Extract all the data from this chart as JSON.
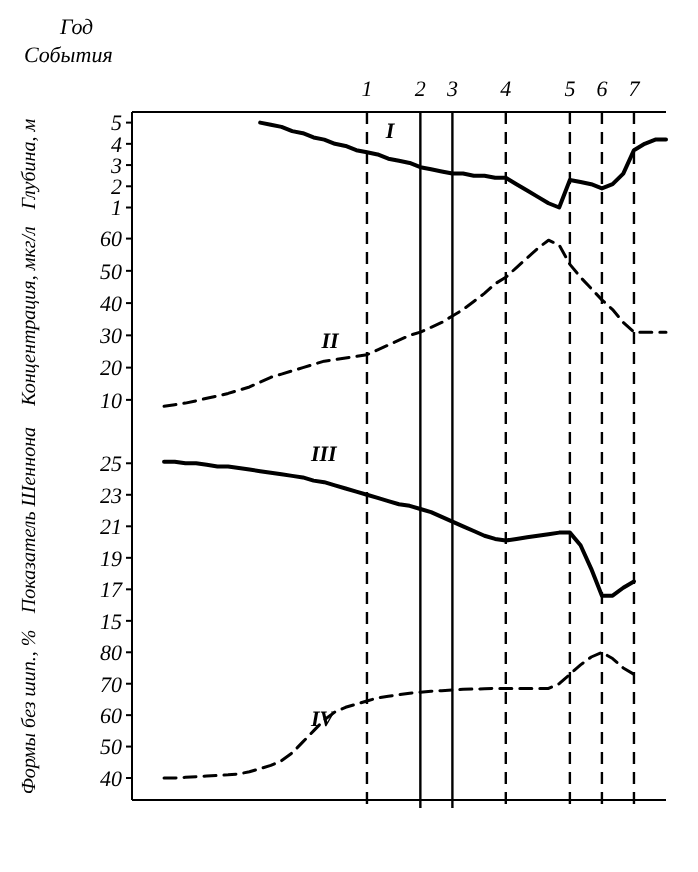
{
  "chart_data": [
    {
      "type": "line",
      "xlabel": "События",
      "ylabel": "Глубина, м",
      "annotations": [
        "Год"
      ],
      "ylim": [
        0.6,
        5.5
      ],
      "yticks": [
        1,
        2,
        3,
        4,
        5
      ],
      "categories": [
        null,
        null,
        null,
        null,
        null,
        null,
        null,
        null,
        null,
        null,
        null,
        null,
        null,
        null,
        null,
        null,
        null,
        null,
        null,
        null,
        null,
        null,
        "1",
        null,
        null,
        null,
        null,
        "2",
        null,
        null,
        "3",
        null,
        null,
        null,
        null,
        "4",
        null,
        null,
        null,
        null,
        null,
        "5",
        null,
        null,
        "6",
        null,
        null,
        "7",
        null,
        null,
        null
      ],
      "series": [
        {
          "name": "I",
          "color": "#000000",
          "line_style": "solid",
          "values": [
            null,
            null,
            null,
            null,
            null,
            null,
            null,
            null,
            null,
            null,
            null,
            null,
            5.0,
            4.9,
            4.8,
            4.6,
            4.5,
            4.3,
            4.2,
            4.0,
            3.9,
            3.7,
            3.6,
            3.5,
            3.3,
            3.2,
            3.1,
            2.9,
            2.8,
            2.7,
            2.6,
            2.6,
            2.5,
            2.5,
            2.4,
            2.4,
            2.1,
            1.8,
            1.5,
            1.2,
            1.0,
            2.3,
            2.2,
            2.1,
            1.9,
            2.1,
            2.6,
            3.7,
            4.0,
            4.2,
            4.2
          ]
        }
      ],
      "ref_lines": [
        {
          "axis": "x",
          "value": "1",
          "line_style": "dashed"
        },
        {
          "axis": "x",
          "value": "2",
          "line_style": "solid"
        },
        {
          "axis": "x",
          "value": "3",
          "line_style": "solid"
        },
        {
          "axis": "x",
          "value": "4",
          "line_style": "dashed"
        },
        {
          "axis": "x",
          "value": "5",
          "line_style": "dashed"
        },
        {
          "axis": "x",
          "value": "6",
          "line_style": "dashed"
        },
        {
          "axis": "x",
          "value": "7",
          "line_style": "dashed"
        }
      ]
    },
    {
      "type": "line",
      "ylabel": "Концентрация, мкг/л",
      "ylim": [
        5,
        67
      ],
      "yticks": [
        10,
        20,
        30,
        40,
        50,
        60
      ],
      "tick_labels": "y",
      "categories": [
        null,
        null,
        null,
        null,
        null,
        null,
        null,
        null,
        null,
        null,
        null,
        null,
        null,
        null,
        null,
        null,
        null,
        null,
        null,
        null,
        null,
        null,
        null,
        null,
        null,
        null,
        null,
        null,
        null,
        null,
        null,
        null,
        null,
        null,
        null,
        null,
        null,
        null,
        null,
        null,
        null,
        null,
        null,
        null,
        null,
        null,
        null,
        null,
        null,
        null,
        null
      ],
      "series": [
        {
          "name": "II",
          "color": "#000000",
          "line_style": "dashed",
          "values": [
            null,
            null,
            null,
            8,
            8.5,
            9,
            9.7,
            10.5,
            11.2,
            12,
            13,
            14,
            15.5,
            17,
            18,
            19,
            20,
            21,
            22,
            22.5,
            23,
            23.5,
            24,
            25.5,
            27,
            28.5,
            30,
            31,
            32.5,
            34,
            36,
            38,
            40.5,
            43,
            46,
            48,
            51,
            54,
            57,
            59.5,
            58,
            52,
            48,
            44.5,
            41,
            38,
            34,
            31,
            31,
            31,
            31
          ]
        }
      ]
    },
    {
      "type": "line",
      "ylabel": "Показатель Шеннона",
      "ylim": [
        14.8,
        28
      ],
      "yticks": [
        15,
        17,
        19,
        21,
        23,
        25
      ],
      "tick_labels": "y",
      "categories": [
        null,
        null,
        null,
        null,
        null,
        null,
        null,
        null,
        null,
        null,
        null,
        null,
        null,
        null,
        null,
        null,
        null,
        null,
        null,
        null,
        null,
        null,
        null,
        null,
        null,
        null,
        null,
        null,
        null,
        null,
        null,
        null,
        null,
        null,
        null,
        null,
        null,
        null,
        null,
        null,
        null,
        null,
        null,
        null,
        null,
        null,
        null,
        null,
        null,
        null,
        null
      ],
      "series": [
        {
          "name": "III",
          "color": "#000000",
          "line_style": "solid",
          "values": [
            null,
            null,
            null,
            25.1,
            25.1,
            25.0,
            25.0,
            24.9,
            24.8,
            24.8,
            24.7,
            24.6,
            24.5,
            24.4,
            24.3,
            24.2,
            24.1,
            23.9,
            23.8,
            23.6,
            23.4,
            23.2,
            23.0,
            22.8,
            22.6,
            22.4,
            22.3,
            22.1,
            21.9,
            21.6,
            21.3,
            21.0,
            20.7,
            20.4,
            20.2,
            20.1,
            20.2,
            20.3,
            20.4,
            20.5,
            20.6,
            20.6,
            19.8,
            18.3,
            16.6,
            16.6,
            17.1,
            17.5,
            null,
            null,
            null
          ]
        }
      ]
    },
    {
      "type": "line",
      "ylabel": "Формы без шип., %",
      "ylim": [
        33,
        89
      ],
      "yticks": [
        40,
        50,
        60,
        70,
        80
      ],
      "tick_labels": "y",
      "categories": [
        null,
        null,
        null,
        null,
        null,
        null,
        null,
        null,
        null,
        null,
        null,
        null,
        null,
        null,
        null,
        null,
        null,
        null,
        null,
        null,
        null,
        null,
        null,
        null,
        null,
        null,
        null,
        null,
        null,
        null,
        null,
        null,
        null,
        null,
        null,
        null,
        null,
        null,
        null,
        null,
        null,
        null,
        null,
        null,
        null,
        null,
        null,
        null,
        null,
        null,
        null
      ],
      "series": [
        {
          "name": "IV",
          "color": "#000000",
          "line_style": "dashed",
          "values": [
            null,
            null,
            null,
            40,
            40,
            40.2,
            40.4,
            40.6,
            40.8,
            41,
            41.3,
            42,
            43,
            44,
            45.5,
            48,
            51.5,
            55,
            58.5,
            61,
            62.5,
            63.5,
            64.5,
            65.5,
            66,
            66.5,
            67,
            67.3,
            67.6,
            67.8,
            68,
            68.2,
            68.3,
            68.4,
            68.5,
            68.5,
            68.5,
            68.5,
            68.5,
            68.5,
            70,
            73,
            76,
            78.5,
            80,
            78,
            75,
            73,
            null,
            null,
            null
          ]
        }
      ]
    }
  ]
}
